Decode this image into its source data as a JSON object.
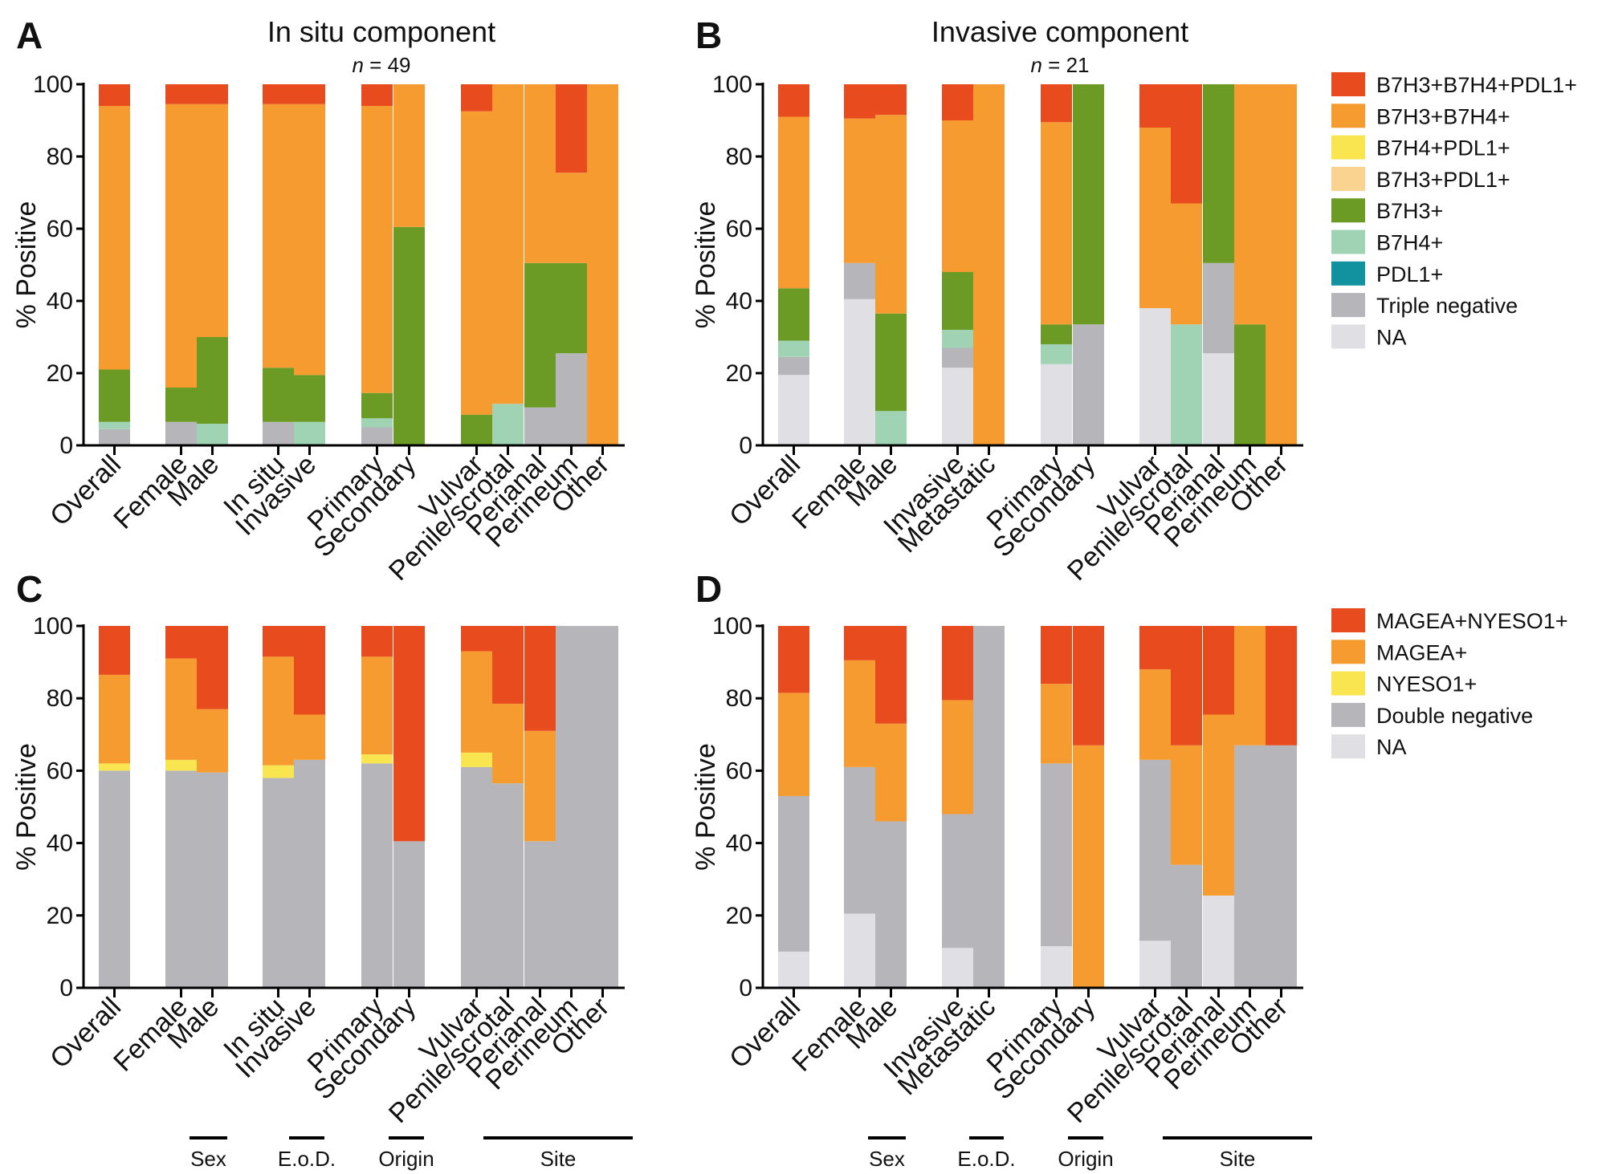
{
  "colors": {
    "B7H3+B7H4+PDL1+": "#e84c1e",
    "B7H3+B7H4+": "#f59b30",
    "B7H4+PDL1+": "#f9e54f",
    "B7H3+PDL1+": "#f9d38f",
    "B7H3+": "#6b9a25",
    "B7H4+": "#9fd3b4",
    "PDL1+": "#12929e",
    "Triple negative": "#b6b5ba",
    "NA": "#e0e0e4",
    "MAGEA+NYESO1+": "#e84c1e",
    "MAGEA+": "#f59b30",
    "NYESO1+": "#f9e54f",
    "Double negative": "#b6b5ba"
  },
  "legends": {
    "top": [
      "B7H3+B7H4+PDL1+",
      "B7H3+B7H4+",
      "B7H4+PDL1+",
      "B7H3+PDL1+",
      "B7H3+",
      "B7H4+",
      "PDL1+",
      "Triple negative",
      "NA"
    ],
    "bottom": [
      "MAGEA+NYESO1+",
      "MAGEA+",
      "NYESO1+",
      "Double negative",
      "NA"
    ]
  },
  "group_labels": {
    "left": [
      "Sex",
      "E.o.D.",
      "Origin",
      "Site"
    ],
    "right": [
      "Sex",
      "E.o.D.",
      "Origin",
      "Site"
    ]
  },
  "chart_data": [
    {
      "panel": "A",
      "type": "bar",
      "stacked": true,
      "title": "In situ component",
      "n_label": "n = 49",
      "ylabel": "% Positive",
      "ylim": [
        0,
        100
      ],
      "yticks": [
        "0",
        "20",
        "40",
        "60",
        "80",
        "100"
      ],
      "categories": [
        "Overall",
        "Female",
        "Male",
        "In situ",
        "Invasive",
        "Primary",
        "Secondary",
        "Vulvar",
        "Penile/scrotal",
        "Perianal",
        "Perineum",
        "Other"
      ],
      "series": [
        {
          "name": "NA",
          "values": [
            0,
            0,
            0,
            0,
            0,
            0,
            0,
            0,
            0,
            0,
            0,
            0
          ]
        },
        {
          "name": "Triple negative",
          "values": [
            4.5,
            6.5,
            0,
            6.5,
            0,
            5,
            0,
            0,
            0,
            10.5,
            25.5,
            0
          ]
        },
        {
          "name": "PDL1+",
          "values": [
            0,
            0,
            0,
            0,
            0,
            0,
            0,
            0,
            0,
            0,
            0,
            0
          ]
        },
        {
          "name": "B7H4+",
          "values": [
            2,
            0,
            6,
            0,
            6.5,
            2.5,
            0,
            0,
            11.5,
            0,
            0,
            0
          ]
        },
        {
          "name": "B7H3+",
          "values": [
            14.5,
            9.5,
            24,
            15,
            13,
            7,
            60.5,
            8.5,
            0,
            40,
            25,
            0
          ]
        },
        {
          "name": "B7H3+PDL1+",
          "values": [
            0,
            0,
            0,
            0,
            0,
            0,
            0,
            0,
            0,
            0,
            0,
            0
          ]
        },
        {
          "name": "B7H4+PDL1+",
          "values": [
            0,
            0,
            0,
            0,
            0,
            0,
            0,
            0,
            0,
            0,
            0,
            0
          ]
        },
        {
          "name": "B7H3+B7H4+",
          "values": [
            73,
            78.5,
            64.5,
            73,
            75,
            79.5,
            39.5,
            84,
            88.5,
            49.5,
            25,
            100
          ]
        },
        {
          "name": "B7H3+B7H4+PDL1+",
          "values": [
            6,
            5.5,
            5.5,
            5.5,
            5.5,
            6,
            0,
            7.5,
            0,
            0,
            24.5,
            0
          ]
        }
      ]
    },
    {
      "panel": "B",
      "type": "bar",
      "stacked": true,
      "title": "Invasive component",
      "n_label": "n = 21",
      "ylabel": "% Positive",
      "ylim": [
        0,
        100
      ],
      "yticks": [
        "0",
        "20",
        "40",
        "60",
        "80",
        "100"
      ],
      "categories": [
        "Overall",
        "Female",
        "Male",
        "Invasive",
        "Metastatic",
        "Primary",
        "Secondary",
        "Vulvar",
        "Penile/scrotal",
        "Perianal",
        "Perineum",
        "Other"
      ],
      "series": [
        {
          "name": "NA",
          "values": [
            19.5,
            40.5,
            0,
            21.5,
            0,
            22.5,
            0,
            38,
            0,
            25.5,
            0,
            0
          ]
        },
        {
          "name": "Triple negative",
          "values": [
            5,
            10,
            0,
            5.5,
            0,
            0,
            33.5,
            0,
            0,
            25,
            0,
            0
          ]
        },
        {
          "name": "PDL1+",
          "values": [
            0,
            0,
            0,
            0,
            0,
            0,
            0,
            0,
            0,
            0,
            0,
            0
          ]
        },
        {
          "name": "B7H4+",
          "values": [
            4.5,
            0,
            9.5,
            5,
            0,
            5.5,
            0,
            0,
            33.5,
            0,
            0,
            0
          ]
        },
        {
          "name": "B7H3+",
          "values": [
            14.5,
            0,
            27,
            16,
            0,
            5.5,
            66.5,
            0,
            0,
            49.5,
            33.5,
            0
          ]
        },
        {
          "name": "B7H3+PDL1+",
          "values": [
            0,
            0,
            0,
            0,
            0,
            0,
            0,
            0,
            0,
            0,
            0,
            0
          ]
        },
        {
          "name": "B7H4+PDL1+",
          "values": [
            0,
            0,
            0,
            0,
            0,
            0,
            0,
            0,
            0,
            0,
            0,
            0
          ]
        },
        {
          "name": "B7H3+B7H4+",
          "values": [
            47.5,
            40,
            55,
            42,
            100,
            56,
            0,
            50,
            33.5,
            0,
            66.5,
            100
          ]
        },
        {
          "name": "B7H3+B7H4+PDL1+",
          "values": [
            9,
            9.5,
            8.5,
            10,
            0,
            10.5,
            0,
            12,
            33,
            0,
            0,
            0
          ]
        }
      ]
    },
    {
      "panel": "C",
      "type": "bar",
      "stacked": true,
      "title": "",
      "ylabel": "% Positive",
      "ylim": [
        0,
        100
      ],
      "yticks": [
        "0",
        "20",
        "40",
        "60",
        "80",
        "100"
      ],
      "categories": [
        "Overall",
        "Female",
        "Male",
        "In situ",
        "Invasive",
        "Primary",
        "Secondary",
        "Vulvar",
        "Penile/scrotal",
        "Perianal",
        "Perineum",
        "Other"
      ],
      "series": [
        {
          "name": "NA",
          "values": [
            0,
            0,
            0,
            0,
            0,
            0,
            0,
            0,
            0,
            0,
            0,
            0
          ]
        },
        {
          "name": "Double negative",
          "values": [
            60,
            60,
            59.5,
            58,
            63,
            62,
            40.5,
            61,
            56.5,
            40.5,
            100,
            100
          ]
        },
        {
          "name": "NYESO1+",
          "values": [
            2,
            3,
            0,
            3.5,
            0,
            2.5,
            0,
            4,
            0,
            0,
            0,
            0
          ]
        },
        {
          "name": "MAGEA+",
          "values": [
            24.5,
            28,
            17.5,
            30,
            12.5,
            27,
            0,
            28,
            22,
            30.5,
            0,
            0
          ]
        },
        {
          "name": "MAGEA+NYESO1+",
          "values": [
            13.5,
            9,
            23,
            8.5,
            24.5,
            8.5,
            59.5,
            7,
            21.5,
            29,
            0,
            0
          ]
        }
      ]
    },
    {
      "panel": "D",
      "type": "bar",
      "stacked": true,
      "title": "",
      "ylabel": "% Positive",
      "ylim": [
        0,
        100
      ],
      "yticks": [
        "0",
        "20",
        "40",
        "60",
        "80",
        "100"
      ],
      "categories": [
        "Overall",
        "Female",
        "Male",
        "Invasive",
        "Metastatic",
        "Primary",
        "Secondary",
        "Vulvar",
        "Penile/scrotal",
        "Perianal",
        "Perineum",
        "Other"
      ],
      "series": [
        {
          "name": "NA",
          "values": [
            10,
            20.5,
            0,
            11,
            0,
            11.5,
            0,
            13,
            0,
            25.5,
            0,
            0
          ]
        },
        {
          "name": "Double negative",
          "values": [
            43,
            40.5,
            46,
            37,
            100,
            50.5,
            0,
            50,
            34,
            0,
            67,
            67
          ]
        },
        {
          "name": "NYESO1+",
          "values": [
            0,
            0,
            0,
            0,
            0,
            0,
            0,
            0,
            0,
            0,
            0,
            0
          ]
        },
        {
          "name": "MAGEA+",
          "values": [
            28.5,
            29.5,
            27,
            31.5,
            0,
            22,
            67,
            25,
            33,
            50,
            33,
            0
          ]
        },
        {
          "name": "MAGEA+NYESO1+",
          "values": [
            18.5,
            9.5,
            27,
            20.5,
            0,
            16,
            33,
            12,
            33,
            24.5,
            0,
            33
          ]
        }
      ]
    }
  ]
}
